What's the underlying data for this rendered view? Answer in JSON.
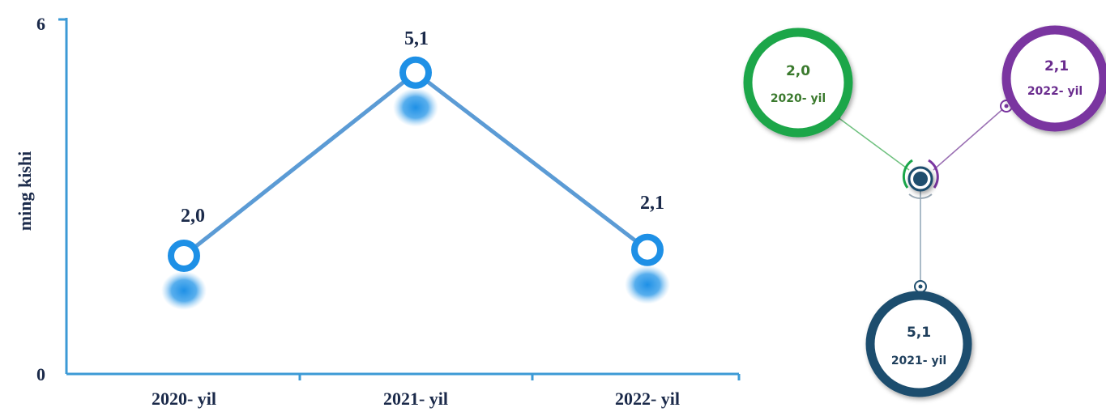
{
  "chart_data": {
    "type": "line",
    "categories": [
      "2020- yil",
      "2021- yil",
      "2022- yil"
    ],
    "values": [
      2.0,
      5.1,
      2.1
    ],
    "value_labels": [
      "2,0",
      "5,1",
      "2,1"
    ],
    "ylabel": "ming kishi",
    "ylim": [
      0,
      6
    ],
    "ytick_labels": [
      "0",
      "6"
    ],
    "grid": false,
    "series_color": "#5b9bd5"
  },
  "infographic": {
    "items": [
      {
        "value": "2,0",
        "year": "2020- yil",
        "color": "#1aa64a",
        "text_color": "#3b7a2e"
      },
      {
        "value": "2,1",
        "year": "2022- yil",
        "color": "#7a35a0",
        "text_color": "#6a2c8e"
      },
      {
        "value": "5,1",
        "year": "2021- yil",
        "color": "#1f4e6e",
        "text_color": "#1f3f5c"
      }
    ]
  }
}
